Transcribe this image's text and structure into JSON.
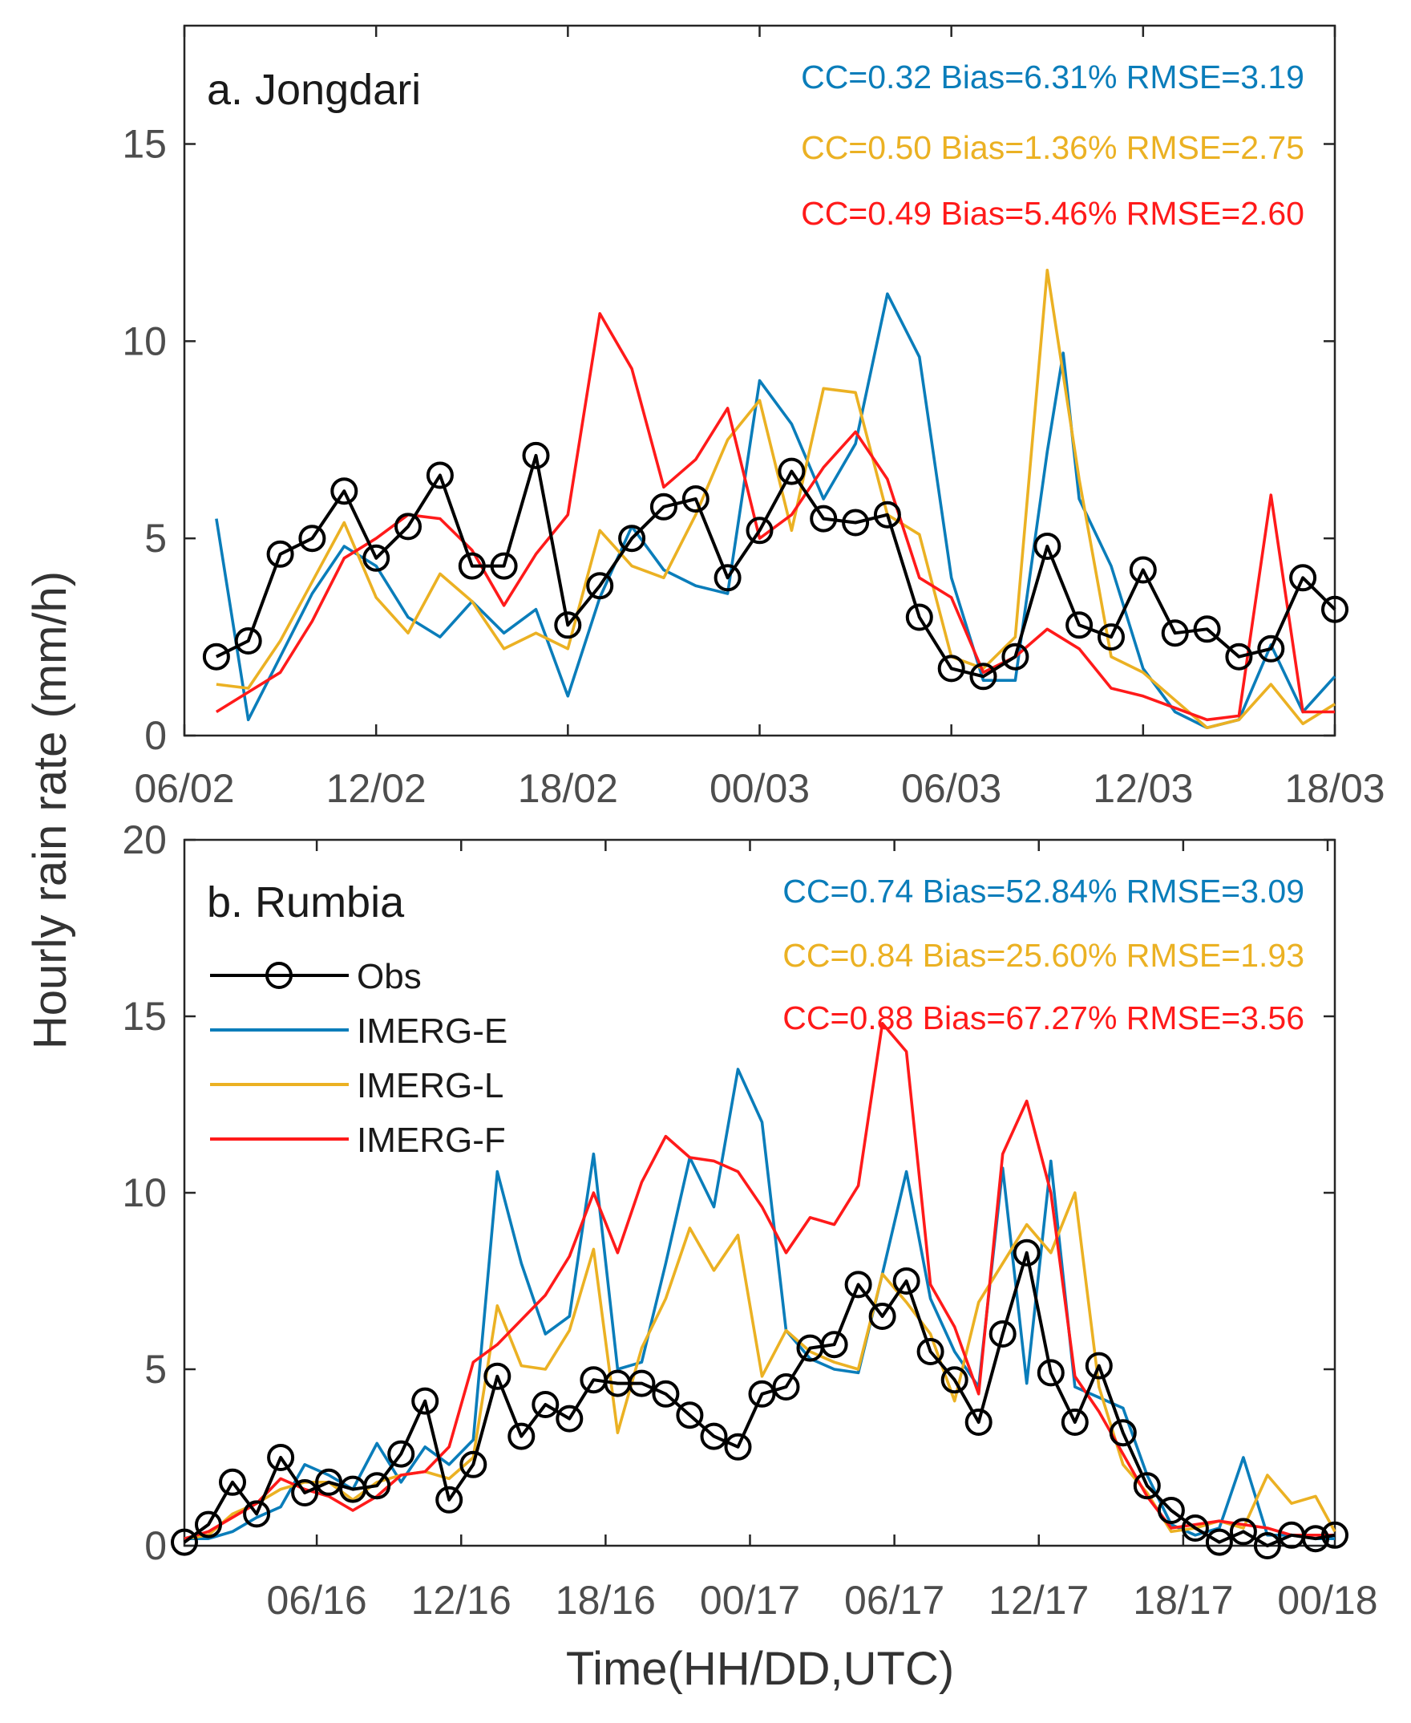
{
  "colors": {
    "Obs": "#000000",
    "IMERG-E": "#0a7dba",
    "IMERG-L": "#ebb123",
    "IMERG-F": "#ff1a1a"
  },
  "xlabel": "Time(HH/DD,UTC)",
  "ylabel": "Hourly rain rate (mm/h)",
  "chart_data": [
    {
      "type": "line",
      "title": "a. Jongdari",
      "xlabel": "Time(HH/DD,UTC)",
      "ylabel": "Hourly rain rate (mm/h)",
      "x_unit": "hours since 00 UTC day 02",
      "x_ticks": [
        6,
        12,
        18,
        24,
        30,
        36,
        42
      ],
      "x_tick_labels": [
        "06/02",
        "12/02",
        "18/02",
        "00/03",
        "06/03",
        "12/03",
        "18/03"
      ],
      "xlim": [
        6,
        42
      ],
      "ylim": [
        0,
        18
      ],
      "y_ticks": [
        0,
        5,
        10,
        15
      ],
      "grid": false,
      "stats": [
        {
          "text": "CC=0.32 Bias=6.31% RMSE=3.19",
          "series": "IMERG-E"
        },
        {
          "text": "CC=0.50 Bias=1.36% RMSE=2.75",
          "series": "IMERG-L"
        },
        {
          "text": "CC=0.49 Bias=5.46% RMSE=2.60",
          "series": "IMERG-F"
        }
      ],
      "series": [
        {
          "name": "Obs",
          "marker": "circle",
          "x": [
            7,
            8,
            9,
            10,
            11,
            12,
            13,
            14,
            15,
            16,
            17,
            18,
            19,
            20,
            21,
            22,
            23,
            24,
            25,
            26,
            27,
            28,
            29,
            30,
            31,
            32,
            33,
            34,
            35,
            36,
            37,
            38,
            39,
            40,
            41,
            42
          ],
          "y": [
            2.0,
            2.4,
            4.6,
            5.0,
            6.2,
            4.5,
            5.3,
            6.6,
            4.3,
            4.3,
            7.1,
            2.8,
            3.8,
            5.0,
            5.8,
            6.0,
            4.0,
            5.2,
            6.7,
            5.5,
            5.4,
            5.6,
            3.0,
            1.7,
            1.5,
            2.0,
            4.8,
            2.8,
            2.5,
            4.2,
            2.6,
            2.7,
            2.0,
            2.2,
            4.0,
            3.2
          ]
        },
        {
          "name": "IMERG-E",
          "x": [
            7,
            8,
            9,
            10,
            11,
            12,
            13,
            14,
            15,
            16,
            17,
            18,
            19,
            20,
            21,
            22,
            23,
            24,
            25,
            26,
            27,
            28,
            29,
            30,
            31,
            32,
            33,
            33.5,
            34,
            35,
            36,
            37,
            38,
            39,
            40,
            41,
            42
          ],
          "y": [
            5.5,
            0.4,
            2.0,
            3.6,
            4.8,
            4.3,
            3.0,
            2.5,
            3.4,
            2.6,
            3.2,
            1.0,
            3.5,
            5.3,
            4.2,
            3.8,
            3.6,
            9.0,
            7.9,
            6.0,
            7.4,
            11.2,
            9.6,
            4.0,
            1.4,
            1.4,
            7.2,
            9.7,
            6.0,
            4.3,
            1.7,
            0.6,
            0.2,
            0.4,
            2.3,
            0.6,
            1.5
          ]
        },
        {
          "name": "IMERG-L",
          "x": [
            7,
            8,
            9,
            10,
            11,
            12,
            13,
            14,
            15,
            16,
            17,
            18,
            19,
            20,
            21,
            22,
            23,
            24,
            25,
            26,
            27,
            28,
            29,
            30,
            31,
            32,
            33,
            34,
            35,
            36,
            37,
            38,
            39,
            40,
            41,
            42
          ],
          "y": [
            1.3,
            1.2,
            2.4,
            3.9,
            5.4,
            3.5,
            2.6,
            4.1,
            3.4,
            2.2,
            2.6,
            2.2,
            5.2,
            4.3,
            4.0,
            5.6,
            7.5,
            8.5,
            5.2,
            8.8,
            8.7,
            5.6,
            5.1,
            2.0,
            1.7,
            2.5,
            11.8,
            6.5,
            2.0,
            1.6,
            0.9,
            0.2,
            0.4,
            1.3,
            0.3,
            0.8
          ]
        },
        {
          "name": "IMERG-F",
          "x": [
            7,
            8,
            9,
            10,
            11,
            12,
            13,
            14,
            15,
            16,
            17,
            18,
            19,
            20,
            21,
            22,
            23,
            24,
            25,
            26,
            27,
            28,
            29,
            30,
            31,
            32,
            33,
            34,
            35,
            36,
            37,
            38,
            39,
            40,
            41,
            42
          ],
          "y": [
            0.6,
            1.1,
            1.6,
            2.9,
            4.5,
            5.0,
            5.6,
            5.5,
            4.7,
            3.3,
            4.6,
            5.6,
            10.7,
            9.3,
            6.3,
            7.0,
            8.3,
            5.0,
            5.6,
            6.8,
            7.7,
            6.5,
            4.0,
            3.5,
            1.6,
            2.0,
            2.7,
            2.2,
            1.2,
            1.0,
            0.7,
            0.4,
            0.5,
            6.1,
            0.6,
            0.6
          ]
        }
      ]
    },
    {
      "type": "line",
      "title": "b. Rumbia",
      "xlabel": "Time(HH/DD,UTC)",
      "ylabel": "Hourly rain rate (mm/h)",
      "x_unit": "hours since 00 UTC day 16",
      "x_ticks": [
        6,
        12,
        18,
        24,
        30,
        36,
        42,
        48
      ],
      "x_tick_labels": [
        "06/16",
        "12/16",
        "18/16",
        "00/17",
        "06/17",
        "12/17",
        "18/17",
        "00/18"
      ],
      "xlim": [
        0.5,
        48.3
      ],
      "ylim": [
        0,
        20
      ],
      "y_ticks": [
        0,
        5,
        10,
        15,
        20
      ],
      "grid": false,
      "legend_position": "top-left",
      "stats": [
        {
          "text": "CC=0.74 Bias=52.84% RMSE=3.09",
          "series": "IMERG-E"
        },
        {
          "text": "CC=0.84 Bias=25.60% RMSE=1.93",
          "series": "IMERG-L"
        },
        {
          "text": "CC=0.88 Bias=67.27% RMSE=3.56",
          "series": "IMERG-F"
        }
      ],
      "series": [
        {
          "name": "Obs",
          "marker": "circle",
          "x": [
            0.5,
            1.5,
            2.5,
            3.5,
            4.5,
            5.5,
            6.5,
            7.5,
            8.5,
            9.5,
            10.5,
            11.5,
            12.5,
            13.5,
            14.5,
            15.5,
            16.5,
            17.5,
            18.5,
            19.5,
            20.5,
            21.5,
            22.5,
            23.5,
            24.5,
            25.5,
            26.5,
            27.5,
            28.5,
            29.5,
            30.5,
            31.5,
            32.5,
            33.5,
            34.5,
            35.5,
            36.5,
            37.5,
            38.5,
            39.5,
            40.5,
            41.5,
            42.5,
            43.5,
            44.5,
            45.5,
            46.5,
            47.5,
            48.3
          ],
          "y": [
            0.1,
            0.6,
            1.8,
            0.9,
            2.5,
            1.5,
            1.8,
            1.6,
            1.7,
            2.6,
            4.1,
            1.3,
            2.3,
            4.8,
            3.1,
            4.0,
            3.6,
            4.7,
            4.6,
            4.6,
            4.3,
            3.7,
            3.1,
            2.8,
            4.3,
            4.5,
            5.6,
            5.7,
            7.4,
            6.5,
            7.5,
            5.5,
            4.7,
            3.5,
            6.0,
            8.3,
            4.9,
            3.5,
            5.1,
            3.2,
            1.7,
            1.0,
            0.5,
            0.1,
            0.4,
            0.0,
            0.3,
            0.2,
            0.3
          ]
        },
        {
          "name": "IMERG-E",
          "x": [
            0.5,
            1.5,
            2.5,
            3.5,
            4.5,
            5.5,
            6.5,
            7.5,
            8.5,
            9.5,
            10.5,
            11.5,
            12.5,
            13.5,
            14.5,
            15.5,
            16.5,
            17.5,
            18.5,
            19.5,
            20.5,
            21.5,
            22.5,
            23.5,
            24.5,
            25.5,
            26.5,
            27.5,
            28.5,
            29.5,
            30.5,
            31.5,
            32.5,
            33.5,
            34.5,
            35.5,
            36.5,
            37.5,
            38.5,
            39.5,
            40.5,
            41.5,
            42.5,
            43.5,
            44.5,
            45.5,
            46.5,
            47.5,
            48.3
          ],
          "y": [
            0.2,
            0.2,
            0.4,
            0.8,
            1.1,
            2.3,
            2.0,
            1.6,
            2.9,
            1.8,
            2.8,
            2.3,
            3.0,
            10.6,
            8.0,
            6.0,
            6.5,
            11.1,
            5.0,
            5.2,
            8.0,
            11.0,
            9.6,
            13.5,
            12.0,
            6.1,
            5.3,
            5.0,
            4.9,
            7.7,
            10.6,
            7.0,
            5.5,
            4.5,
            10.7,
            4.6,
            10.9,
            4.5,
            4.2,
            3.9,
            2.0,
            0.6,
            0.3,
            0.5,
            2.5,
            0.3,
            0.3,
            0.2,
            0.2
          ]
        },
        {
          "name": "IMERG-L",
          "x": [
            0.5,
            1.5,
            2.5,
            3.5,
            4.5,
            5.5,
            6.5,
            7.5,
            8.5,
            9.5,
            10.5,
            11.5,
            12.5,
            13.5,
            14.5,
            15.5,
            16.5,
            17.5,
            18.5,
            19.5,
            20.5,
            21.5,
            22.5,
            23.5,
            24.5,
            25.5,
            26.5,
            27.5,
            28.5,
            29.5,
            30.5,
            31.5,
            32.5,
            33.5,
            34.5,
            35.5,
            36.5,
            37.5,
            38.5,
            39.5,
            40.5,
            41.5,
            42.5,
            43.5,
            44.5,
            45.5,
            46.5,
            47.5,
            48.3
          ],
          "y": [
            0.2,
            0.3,
            0.9,
            1.2,
            1.6,
            1.8,
            1.8,
            1.3,
            1.8,
            2.0,
            2.1,
            1.9,
            2.5,
            6.8,
            5.1,
            5.0,
            6.1,
            8.4,
            3.2,
            5.6,
            7.0,
            9.0,
            7.8,
            8.8,
            4.8,
            6.1,
            5.5,
            5.2,
            5.0,
            7.7,
            6.9,
            6.0,
            4.1,
            6.9,
            8.0,
            9.1,
            8.3,
            10.0,
            4.5,
            2.3,
            1.5,
            0.4,
            0.5,
            0.7,
            0.5,
            2.0,
            1.2,
            1.4,
            0.4
          ]
        },
        {
          "name": "IMERG-F",
          "x": [
            0.5,
            1.5,
            2.5,
            3.5,
            4.5,
            5.5,
            6.5,
            7.5,
            8.5,
            9.5,
            10.5,
            11.5,
            12.5,
            13.5,
            14.5,
            15.5,
            16.5,
            17.5,
            18.5,
            19.5,
            20.5,
            21.5,
            22.5,
            23.5,
            24.5,
            25.5,
            26.5,
            27.5,
            28.5,
            29.5,
            30.5,
            31.5,
            32.5,
            33.5,
            34.5,
            35.5,
            36.5,
            37.5,
            38.5,
            39.5,
            40.5,
            41.5,
            42.5,
            43.5,
            44.5,
            45.5,
            46.5,
            47.5,
            48.3
          ],
          "y": [
            0.2,
            0.4,
            0.8,
            1.2,
            1.9,
            1.6,
            1.4,
            1.0,
            1.4,
            2.0,
            2.1,
            2.8,
            5.2,
            5.7,
            6.4,
            7.1,
            8.2,
            10.0,
            8.3,
            10.3,
            11.6,
            11.0,
            10.9,
            10.6,
            9.6,
            8.3,
            9.3,
            9.1,
            10.2,
            14.8,
            14.0,
            7.4,
            6.2,
            4.3,
            11.1,
            12.6,
            10.0,
            4.8,
            3.8,
            2.6,
            1.4,
            0.5,
            0.6,
            0.7,
            0.6,
            0.5,
            0.3,
            0.3,
            0.3
          ]
        }
      ]
    }
  ]
}
